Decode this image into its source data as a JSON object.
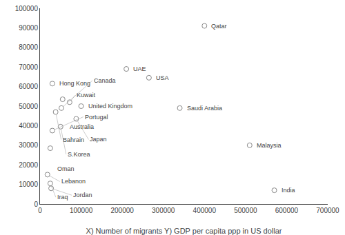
{
  "chart_data": {
    "type": "scatter",
    "xlabel": "X) Number of migrants Y) GDP per capita ppp in US dollar",
    "labels": [
      "Qatar",
      "UAE",
      "USA",
      "Hong Kong",
      "Australia",
      "Kuwait",
      "United Kingdom",
      "Canada",
      "Bahrain",
      "Japan",
      "S.Korea",
      "Portugal",
      "Saudi Arabia",
      "Oman",
      "Malaysia",
      "Lebanon",
      "Iraq",
      "Jordan",
      "India"
    ],
    "x": [
      400000,
      210000,
      265000,
      30000,
      55000,
      72000,
      100000,
      52000,
      38000,
      88000,
      50000,
      30000,
      340000,
      25000,
      510000,
      18000,
      25000,
      27000,
      570000
    ],
    "values": [
      91000,
      69000,
      64500,
      61500,
      53500,
      52000,
      50000,
      49000,
      47000,
      43500,
      39500,
      37500,
      49000,
      28500,
      30000,
      15000,
      10500,
      8000,
      7000
    ],
    "marker": "circle-open",
    "color": "#888888",
    "xlim": [
      0,
      700000
    ],
    "ylim": [
      0,
      100000
    ],
    "xticks": [
      0,
      100000,
      200000,
      300000,
      400000,
      500000,
      600000,
      700000
    ],
    "yticks": [
      0,
      10000,
      20000,
      30000,
      40000,
      50000,
      60000,
      70000,
      80000,
      90000,
      100000
    ],
    "grid": false
  }
}
